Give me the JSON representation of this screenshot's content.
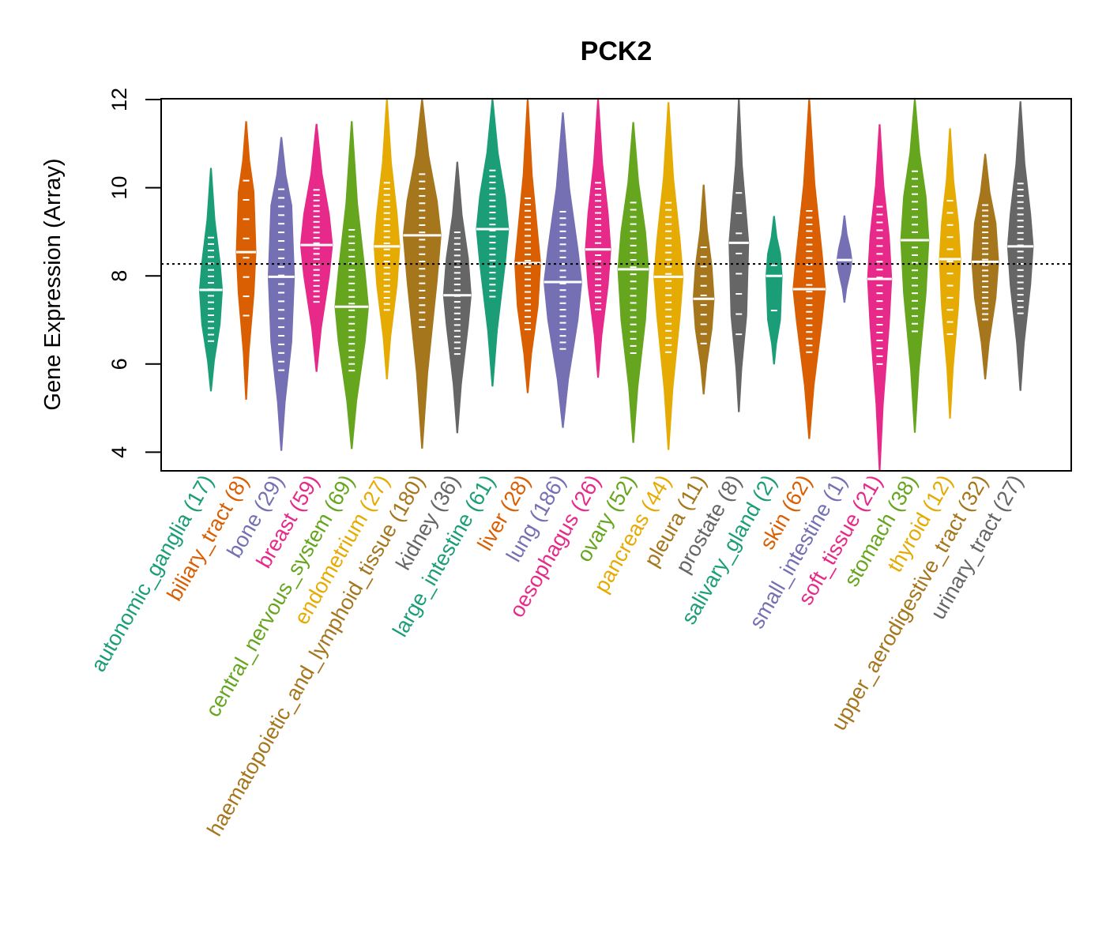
{
  "chart_data": {
    "type": "violin",
    "title": "PCK2",
    "xlabel": "",
    "ylabel": "Gene Expression (Array)",
    "ylim": [
      3.6,
      12.0
    ],
    "yticks": [
      4,
      6,
      8,
      10,
      12
    ],
    "reference_line": 8.27,
    "grid": false,
    "legend": "none",
    "categories": [
      {
        "name": "autonomic_ganglia",
        "n": 17,
        "color": "#1B9E77",
        "median": 7.68,
        "min": 5.39,
        "max": 10.44,
        "q1": 6.9,
        "q3": 8.3
      },
      {
        "name": "biliary_tract",
        "n": 8,
        "color": "#D95F02",
        "median": 8.54,
        "min": 5.2,
        "max": 11.5,
        "q1": 7.6,
        "q3": 9.9
      },
      {
        "name": "bone",
        "n": 29,
        "color": "#7570B3",
        "median": 7.98,
        "min": 4.04,
        "max": 11.14,
        "q1": 6.5,
        "q3": 9.6
      },
      {
        "name": "breast",
        "n": 59,
        "color": "#E7298A",
        "median": 8.7,
        "min": 5.83,
        "max": 11.44,
        "q1": 8.0,
        "q3": 9.4
      },
      {
        "name": "central_nervous_system",
        "n": 69,
        "color": "#66A61E",
        "median": 7.3,
        "min": 4.08,
        "max": 11.5,
        "q1": 6.5,
        "q3": 8.1
      },
      {
        "name": "endometrium",
        "n": 27,
        "color": "#E6AB02",
        "median": 8.67,
        "min": 5.66,
        "max": 12.0,
        "q1": 7.8,
        "q3": 9.4
      },
      {
        "name": "haematopoietic_and_lymphoid_tissue",
        "n": 180,
        "color": "#A6761D",
        "median": 8.92,
        "min": 4.09,
        "max": 12.0,
        "q1": 7.9,
        "q3": 9.7
      },
      {
        "name": "kidney",
        "n": 36,
        "color": "#666666",
        "median": 7.56,
        "min": 4.44,
        "max": 10.58,
        "q1": 6.9,
        "q3": 8.4
      },
      {
        "name": "large_intestine",
        "n": 61,
        "color": "#1B9E77",
        "median": 9.06,
        "min": 5.5,
        "max": 12.0,
        "q1": 8.3,
        "q3": 9.8
      },
      {
        "name": "liver",
        "n": 28,
        "color": "#D95F02",
        "median": 8.29,
        "min": 5.35,
        "max": 12.0,
        "q1": 7.3,
        "q3": 8.9
      },
      {
        "name": "lung",
        "n": 186,
        "color": "#7570B3",
        "median": 7.86,
        "min": 4.56,
        "max": 11.7,
        "q1": 7.0,
        "q3": 8.6
      },
      {
        "name": "oesophagus",
        "n": 26,
        "color": "#E7298A",
        "median": 8.6,
        "min": 5.7,
        "max": 12.0,
        "q1": 7.8,
        "q3": 9.4
      },
      {
        "name": "ovary",
        "n": 52,
        "color": "#66A61E",
        "median": 8.15,
        "min": 4.22,
        "max": 11.48,
        "q1": 7.0,
        "q3": 9.0
      },
      {
        "name": "pancreas",
        "n": 44,
        "color": "#E6AB02",
        "median": 7.98,
        "min": 4.06,
        "max": 11.93,
        "q1": 7.1,
        "q3": 8.8
      },
      {
        "name": "pleura",
        "n": 11,
        "color": "#A6761D",
        "median": 7.48,
        "min": 5.32,
        "max": 10.06,
        "q1": 6.8,
        "q3": 8.2
      },
      {
        "name": "prostate",
        "n": 8,
        "color": "#666666",
        "median": 8.75,
        "min": 4.92,
        "max": 12.0,
        "q1": 7.1,
        "q3": 9.3
      },
      {
        "name": "salivary_gland",
        "n": 2,
        "color": "#1B9E77",
        "median": 8.0,
        "min": 6.0,
        "max": 9.35,
        "q1": 7.0,
        "q3": 8.5
      },
      {
        "name": "skin",
        "n": 62,
        "color": "#D95F02",
        "median": 7.7,
        "min": 4.31,
        "max": 12.0,
        "q1": 7.0,
        "q3": 8.5
      },
      {
        "name": "small_intestine",
        "n": 1,
        "color": "#7570B3",
        "median": 8.36,
        "min": 7.4,
        "max": 9.36,
        "q1": 8.1,
        "q3": 8.6
      },
      {
        "name": "soft_tissue",
        "n": 21,
        "color": "#E7298A",
        "median": 7.93,
        "min": 3.6,
        "max": 11.43,
        "q1": 6.9,
        "q3": 8.9
      },
      {
        "name": "stomach",
        "n": 38,
        "color": "#66A61E",
        "median": 8.81,
        "min": 4.45,
        "max": 12.0,
        "q1": 7.6,
        "q3": 9.8
      },
      {
        "name": "thyroid",
        "n": 12,
        "color": "#E6AB02",
        "median": 8.38,
        "min": 4.77,
        "max": 11.34,
        "q1": 7.3,
        "q3": 9.2
      },
      {
        "name": "upper_aerodigestive_tract",
        "n": 32,
        "color": "#A6761D",
        "median": 8.32,
        "min": 5.66,
        "max": 10.76,
        "q1": 7.5,
        "q3": 9.2
      },
      {
        "name": "urinary_tract",
        "n": 27,
        "color": "#666666",
        "median": 8.67,
        "min": 5.4,
        "max": 11.95,
        "q1": 7.8,
        "q3": 9.4
      }
    ]
  }
}
